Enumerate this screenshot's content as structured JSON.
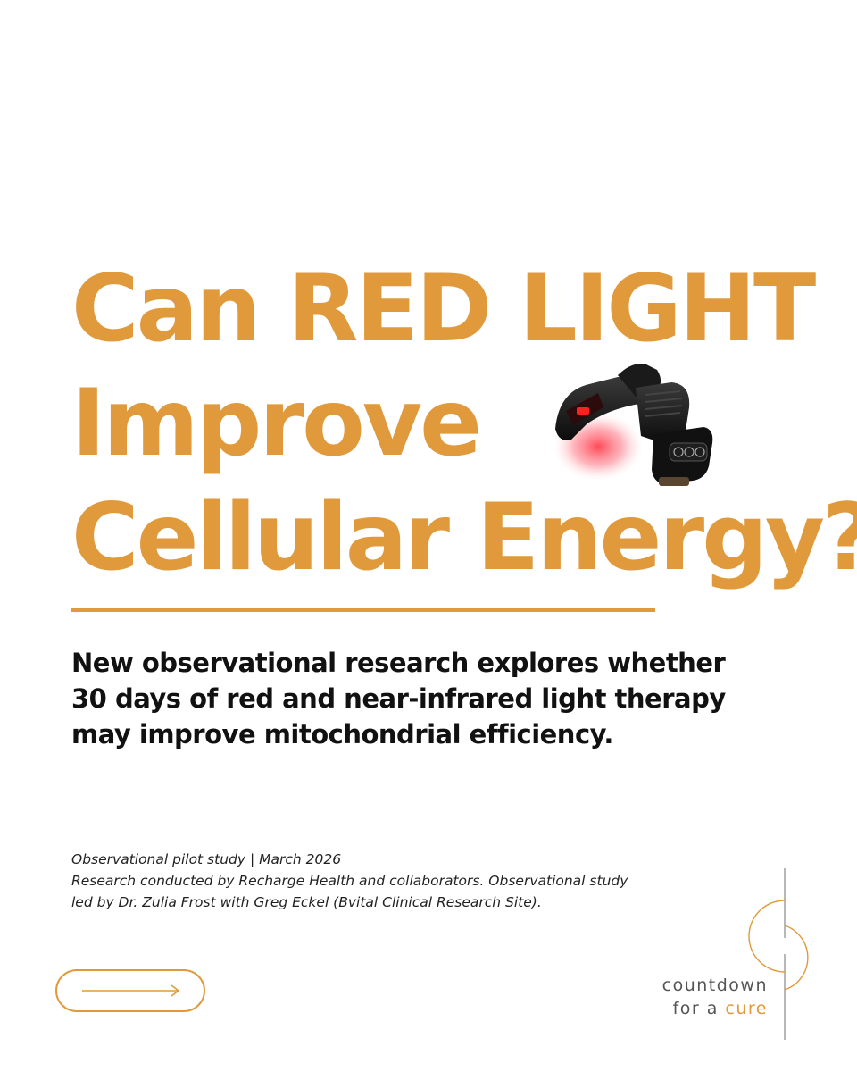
{
  "headline": {
    "lines": [
      "Can RED LIGHT",
      "Improve",
      "Cellular Energy?"
    ]
  },
  "subheadline": "New observational research explores whether 30 days of red and near-infrared light therapy may improve mitochondrial efficiency.",
  "meta": {
    "line1": "Observational pilot study | March 2026",
    "line2": "Research conducted by Recharge Health and collaborators. Observational study",
    "line3": "led by Dr. Zulia Frost with Greg Eckel (Bvital Clinical Research Site)."
  },
  "logo": {
    "line1": "countdown",
    "line2_prefix": "for a ",
    "line2_accent": "cure"
  },
  "colors": {
    "accent": "#E09A3C",
    "text": "#111111",
    "background": "#FFFFFF"
  },
  "icons": {
    "next": "arrow-right-icon",
    "product": "red-light-device-image"
  }
}
